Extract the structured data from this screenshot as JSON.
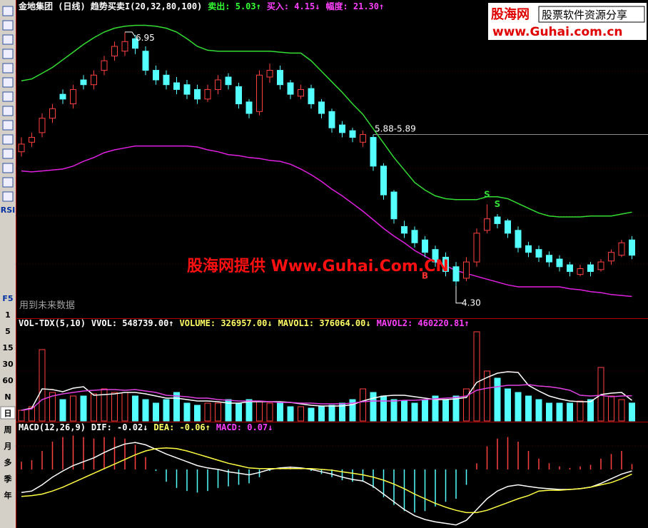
{
  "toolbar": {
    "labels": [
      "RSI",
      "F5",
      "1",
      "5",
      "15",
      "30",
      "60",
      "N",
      "日",
      "周",
      "月",
      "多",
      "季",
      "年"
    ]
  },
  "logo": {
    "name": "股海网",
    "slogan": "股票软件资源分享",
    "url": "www.Guhai.com.cn"
  },
  "watermark": "股海网提供 Www.Guhai.Com.CN",
  "note": "用到未来数据",
  "chart_data": [
    {
      "type": "candlestick",
      "header": [
        {
          "text": "金地集团 (日线) 趋势买卖I(20,32,80,100)",
          "color": "#ffffff"
        },
        {
          "text": "卖出: 5.03↑",
          "color": "#33ff33"
        },
        {
          "text": "买入: 4.15↓",
          "color": "#ff40ff"
        },
        {
          "text": "幅度: 21.30↑",
          "color": "#ff40ff"
        }
      ],
      "ylim": [
        3.97,
        7.15
      ],
      "up_color": "#ff4040",
      "down_color": "#54ffff",
      "open": [
        5.7,
        5.8,
        5.9,
        6.05,
        6.3,
        6.2,
        6.45,
        6.4,
        6.55,
        6.7,
        6.75,
        6.88,
        6.75,
        6.55,
        6.5,
        6.42,
        6.4,
        6.35,
        6.25,
        6.35,
        6.48,
        6.38,
        6.22,
        6.12,
        6.48,
        6.55,
        6.42,
        6.28,
        6.36,
        6.22,
        6.12,
        5.98,
        5.92,
        5.8,
        5.85,
        5.55,
        5.28,
        4.92,
        4.88,
        4.78,
        4.68,
        4.6,
        4.5,
        4.38,
        4.55,
        4.88,
        5.02,
        4.98,
        4.88,
        4.72,
        4.68,
        4.62,
        4.58,
        4.52,
        4.42,
        4.52,
        4.47,
        4.56,
        4.62,
        4.78
      ],
      "high": [
        5.85,
        5.9,
        6.1,
        6.2,
        6.35,
        6.4,
        6.5,
        6.55,
        6.7,
        6.85,
        6.95,
        6.92,
        6.8,
        6.6,
        6.55,
        6.48,
        6.45,
        6.4,
        6.4,
        6.5,
        6.52,
        6.42,
        6.25,
        6.55,
        6.62,
        6.6,
        6.45,
        6.4,
        6.4,
        6.25,
        6.15,
        6.02,
        5.95,
        5.92,
        5.88,
        5.58,
        5.3,
        4.98,
        4.92,
        4.82,
        4.72,
        4.65,
        4.55,
        4.6,
        4.9,
        5.15,
        5.05,
        5.0,
        4.92,
        4.76,
        4.72,
        4.66,
        4.62,
        4.55,
        4.52,
        4.55,
        4.58,
        4.68,
        4.78,
        4.82
      ],
      "low": [
        5.65,
        5.75,
        5.85,
        6.0,
        6.2,
        6.15,
        6.35,
        6.35,
        6.5,
        6.65,
        6.7,
        6.72,
        6.5,
        6.4,
        6.35,
        6.3,
        6.25,
        6.2,
        6.22,
        6.3,
        6.35,
        6.15,
        6.05,
        6.08,
        6.42,
        6.35,
        6.25,
        6.25,
        6.15,
        6.05,
        5.9,
        5.85,
        5.8,
        5.75,
        5.5,
        5.2,
        4.95,
        4.8,
        4.7,
        4.6,
        4.5,
        4.4,
        4.3,
        4.35,
        4.5,
        4.85,
        4.9,
        4.8,
        4.65,
        4.6,
        4.55,
        4.5,
        4.45,
        4.4,
        4.4,
        4.4,
        4.45,
        4.52,
        4.6,
        4.58
      ],
      "close": [
        5.78,
        5.85,
        6.05,
        6.15,
        6.25,
        6.35,
        6.4,
        6.5,
        6.65,
        6.8,
        6.85,
        6.78,
        6.55,
        6.45,
        6.4,
        6.35,
        6.3,
        6.25,
        6.35,
        6.45,
        6.4,
        6.2,
        6.1,
        6.5,
        6.55,
        6.4,
        6.3,
        6.35,
        6.2,
        6.1,
        5.95,
        5.9,
        5.85,
        5.88,
        5.55,
        5.25,
        5.0,
        4.85,
        4.75,
        4.65,
        4.55,
        4.45,
        4.35,
        4.55,
        4.85,
        5.0,
        4.95,
        4.85,
        4.7,
        4.65,
        4.6,
        4.55,
        4.5,
        4.45,
        4.48,
        4.45,
        4.55,
        4.65,
        4.75,
        4.62
      ],
      "bands": [
        {
          "color": "#33dd33",
          "values": [
            6.44,
            6.46,
            6.52,
            6.58,
            6.66,
            6.74,
            6.82,
            6.89,
            6.95,
            6.99,
            7.01,
            7.02,
            7.02,
            7.01,
            6.99,
            6.95,
            6.88,
            6.8,
            6.76,
            6.75,
            6.75,
            6.75,
            6.75,
            6.75,
            6.75,
            6.74,
            6.73,
            6.73,
            6.65,
            6.54,
            6.43,
            6.32,
            6.2,
            6.09,
            5.94,
            5.79,
            5.64,
            5.51,
            5.38,
            5.3,
            5.24,
            5.21,
            5.2,
            5.2,
            5.2,
            5.23,
            5.23,
            5.21,
            5.16,
            5.11,
            5.06,
            5.03,
            5.02,
            5.02,
            5.02,
            5.03,
            5.03,
            5.03,
            5.05,
            5.07
          ]
        },
        {
          "color": "#e020e0",
          "values": [
            5.5,
            5.49,
            5.5,
            5.51,
            5.52,
            5.55,
            5.6,
            5.64,
            5.69,
            5.72,
            5.74,
            5.76,
            5.76,
            5.76,
            5.76,
            5.76,
            5.76,
            5.75,
            5.72,
            5.7,
            5.67,
            5.66,
            5.64,
            5.63,
            5.61,
            5.6,
            5.57,
            5.52,
            5.46,
            5.39,
            5.31,
            5.24,
            5.16,
            5.08,
            4.99,
            4.9,
            4.82,
            4.75,
            4.67,
            4.61,
            4.55,
            4.51,
            4.46,
            4.43,
            4.4,
            4.37,
            4.34,
            4.31,
            4.29,
            4.29,
            4.29,
            4.29,
            4.29,
            4.27,
            4.26,
            4.24,
            4.23,
            4.21,
            4.2,
            4.19
          ]
        }
      ],
      "peak_label": "6.95",
      "low_label": "4.30",
      "level": {
        "value": 5.88,
        "label": "5.88-5.89"
      },
      "signals": [
        {
          "index": 45,
          "label": "S",
          "color": "#33dd33"
        },
        {
          "index": 46,
          "label": "S",
          "color": "#33dd33"
        },
        {
          "index": 39,
          "label": "B",
          "color": "#ff3030"
        }
      ]
    },
    {
      "type": "volume",
      "header": [
        {
          "text": "VOL-TDX(5,10)",
          "color": "#ffffff"
        },
        {
          "text": "VVOL: 548739.00↑",
          "color": "#ffffff"
        },
        {
          "text": "VOLUME: 326957.00↓",
          "color": "#ffff66"
        },
        {
          "text": "MAVOL1: 376064.00↓",
          "color": "#ffff66"
        },
        {
          "text": "MAVOL2: 460220.81↑",
          "color": "#ff40ff"
        }
      ],
      "ylim": [
        0,
        1664000
      ],
      "values": [
        195000,
        260000,
        1300000,
        520000,
        390000,
        455000,
        455000,
        494000,
        585000,
        520000,
        520000,
        455000,
        390000,
        325000,
        390000,
        520000,
        325000,
        286000,
        325000,
        325000,
        390000,
        325000,
        390000,
        364000,
        325000,
        325000,
        260000,
        260000,
        234000,
        260000,
        286000,
        325000,
        390000,
        585000,
        520000,
        455000,
        390000,
        364000,
        325000,
        390000,
        455000,
        390000,
        455000,
        585000,
        1625000,
        910000,
        780000,
        585000,
        520000,
        455000,
        390000,
        325000,
        325000,
        325000,
        364000,
        390000,
        975000,
        455000,
        390000,
        326957
      ],
      "series": [
        {
          "color": "#ffffff",
          "values": [
            195000,
            234000,
            585000,
            572000,
            533000,
            598000,
            624000,
            468000,
            481000,
            494000,
            520000,
            520000,
            494000,
            455000,
            416000,
            416000,
            390000,
            364000,
            364000,
            351000,
            325000,
            325000,
            351000,
            351000,
            351000,
            351000,
            338000,
            312000,
            286000,
            273000,
            273000,
            273000,
            299000,
            364000,
            416000,
            455000,
            468000,
            468000,
            442000,
            416000,
            390000,
            390000,
            403000,
            429000,
            702000,
            793000,
            871000,
            897000,
            884000,
            650000,
            546000,
            455000,
            403000,
            364000,
            351000,
            351000,
            481000,
            507000,
            520000,
            376064
          ]
        },
        {
          "color": "#e040e0",
          "values": [
            195000,
            221000,
            390000,
            455000,
            494000,
            520000,
            546000,
            559000,
            572000,
            572000,
            559000,
            572000,
            546000,
            520000,
            468000,
            455000,
            442000,
            416000,
            416000,
            390000,
            377000,
            364000,
            364000,
            364000,
            351000,
            338000,
            338000,
            325000,
            325000,
            312000,
            312000,
            312000,
            325000,
            351000,
            364000,
            364000,
            364000,
            377000,
            377000,
            390000,
            403000,
            416000,
            429000,
            455000,
            559000,
            598000,
            624000,
            650000,
            650000,
            663000,
            637000,
            624000,
            598000,
            559000,
            468000,
            455000,
            468000,
            442000,
            455000,
            460220.81
          ]
        }
      ]
    },
    {
      "type": "macd",
      "header": [
        {
          "text": "MACD(12,26,9)",
          "color": "#ffffff"
        },
        {
          "text": "DIF: -0.02↓",
          "color": "#ffffff"
        },
        {
          "text": "DEA: -0.06↑",
          "color": "#ffff66"
        },
        {
          "text": "MACD: 0.07↓",
          "color": "#ff40ff"
        }
      ],
      "ylim": [
        -0.76,
        0.49
      ],
      "pos_color": "#ff4040",
      "neg_color": "#54ffff",
      "values": [
        0.1,
        0.12,
        0.24,
        0.36,
        0.42,
        0.44,
        0.42,
        0.4,
        0.42,
        0.42,
        0.4,
        0.32,
        0.16,
        -0.02,
        -0.16,
        -0.24,
        -0.28,
        -0.3,
        -0.28,
        -0.24,
        -0.22,
        -0.2,
        -0.18,
        -0.1,
        -0.02,
        0.02,
        0.04,
        0.02,
        -0.02,
        -0.06,
        -0.1,
        -0.14,
        -0.16,
        -0.16,
        -0.24,
        -0.36,
        -0.46,
        -0.54,
        -0.56,
        -0.54,
        -0.48,
        -0.42,
        -0.38,
        -0.2,
        0.08,
        0.3,
        0.4,
        0.42,
        0.36,
        0.24,
        0.14,
        0.08,
        0.04,
        0.02,
        0.04,
        0.06,
        0.14,
        0.2,
        0.24,
        0.07
      ],
      "series": [
        {
          "color": "#ffffff",
          "values": [
            -0.3,
            -0.28,
            -0.2,
            -0.1,
            -0.02,
            0.05,
            0.1,
            0.15,
            0.22,
            0.28,
            0.33,
            0.35,
            0.32,
            0.26,
            0.2,
            0.15,
            0.1,
            0.05,
            0.02,
            0.0,
            -0.03,
            -0.05,
            -0.07,
            -0.04,
            0.0,
            0.02,
            0.03,
            0.02,
            0.0,
            -0.03,
            -0.06,
            -0.1,
            -0.13,
            -0.15,
            -0.22,
            -0.32,
            -0.42,
            -0.52,
            -0.6,
            -0.65,
            -0.68,
            -0.7,
            -0.72,
            -0.66,
            -0.52,
            -0.38,
            -0.28,
            -0.22,
            -0.2,
            -0.22,
            -0.24,
            -0.25,
            -0.26,
            -0.26,
            -0.25,
            -0.23,
            -0.18,
            -0.12,
            -0.06,
            -0.02
          ]
        },
        {
          "color": "#ffff44",
          "values": [
            -0.35,
            -0.34,
            -0.32,
            -0.28,
            -0.23,
            -0.17,
            -0.11,
            -0.05,
            0.01,
            0.07,
            0.13,
            0.19,
            0.24,
            0.27,
            0.28,
            0.27,
            0.24,
            0.2,
            0.16,
            0.12,
            0.08,
            0.05,
            0.02,
            0.01,
            0.01,
            0.01,
            0.01,
            0.01,
            0.01,
            0.0,
            -0.01,
            -0.03,
            -0.05,
            -0.07,
            -0.1,
            -0.14,
            -0.19,
            -0.25,
            -0.32,
            -0.38,
            -0.44,
            -0.49,
            -0.53,
            -0.56,
            -0.56,
            -0.53,
            -0.48,
            -0.43,
            -0.38,
            -0.34,
            -0.28,
            -0.27,
            -0.27,
            -0.26,
            -0.25,
            -0.23,
            -0.2,
            -0.17,
            -0.12,
            -0.06
          ]
        }
      ]
    }
  ]
}
